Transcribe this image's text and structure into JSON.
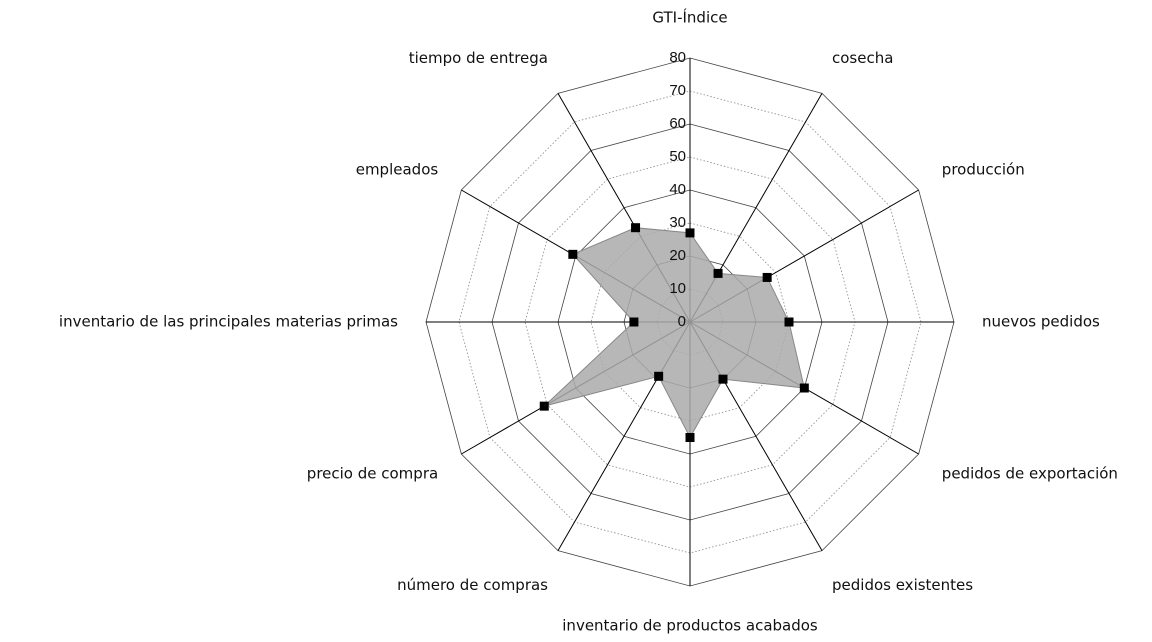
{
  "chart_data": {
    "type": "radar",
    "categories": [
      "GTI-Índice",
      "cosecha",
      "producción",
      "nuevos pedidos",
      "pedidos de exportación",
      "pedidos existentes",
      "inventario de productos acabados",
      "número de compras",
      "precio de compra",
      "inventario de las principales materias primas",
      "empleados",
      "tiempo de entrega"
    ],
    "values": [
      27,
      17,
      27,
      30,
      40,
      20,
      35,
      19,
      51,
      17,
      41,
      33
    ],
    "color": "#aaaaaa",
    "marker_color": "#000000",
    "ylim": [
      0,
      80
    ],
    "yticks": [
      0,
      10,
      20,
      30,
      40,
      50,
      60,
      70,
      80
    ],
    "grid": true
  }
}
